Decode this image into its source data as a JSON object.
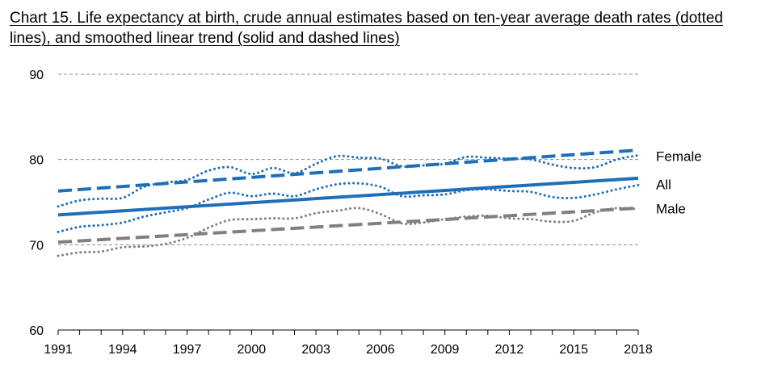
{
  "chart_data": {
    "type": "line",
    "title": "Chart 15. Life expectancy at birth, crude annual estimates based on ten-year average death rates (dotted lines), and smoothed linear trend (solid and dashed lines)",
    "xlabel": "",
    "ylabel": "",
    "ylim": [
      60,
      90
    ],
    "xlim": [
      1991,
      2018
    ],
    "y_ticks": [
      60,
      70,
      80,
      90
    ],
    "x_ticks": [
      1991,
      1994,
      1997,
      2000,
      2003,
      2006,
      2009,
      2012,
      2015,
      2018
    ],
    "grid": true,
    "legend": "direct labels at right end of lines",
    "x": [
      1991,
      1992,
      1993,
      1994,
      1995,
      1996,
      1997,
      1998,
      1999,
      2000,
      2001,
      2002,
      2003,
      2004,
      2005,
      2006,
      2007,
      2008,
      2009,
      2010,
      2011,
      2012,
      2013,
      2014,
      2015,
      2016,
      2017,
      2018
    ],
    "series": [
      {
        "name": "Female",
        "style": "dotted",
        "color": "#1e6fba",
        "values": [
          74.5,
          75.2,
          75.4,
          75.5,
          76.8,
          77.3,
          77.6,
          78.7,
          79.1,
          78.3,
          79.0,
          78.4,
          79.5,
          80.4,
          80.2,
          80.1,
          79.2,
          79.3,
          79.5,
          80.3,
          80.2,
          80.1,
          80.0,
          79.4,
          79.0,
          79.1,
          80.0,
          80.5
        ]
      },
      {
        "name": "",
        "style": "dashed",
        "color": "#1e6fba",
        "values": [
          76.3,
          76.4,
          76.6,
          76.8,
          77.0,
          77.2,
          77.3,
          77.5,
          77.7,
          77.9,
          78.1,
          78.2,
          78.4,
          78.6,
          78.8,
          79.0,
          79.1,
          79.3,
          79.5,
          79.7,
          79.9,
          80.0,
          80.2,
          80.4,
          80.6,
          80.8,
          80.9,
          81.1
        ]
      },
      {
        "name": "All",
        "style": "dotted",
        "color": "#1e6fba",
        "values": [
          71.5,
          72.1,
          72.3,
          72.6,
          73.3,
          73.8,
          74.3,
          75.3,
          76.1,
          75.7,
          76.0,
          75.7,
          76.5,
          77.1,
          77.2,
          76.8,
          75.7,
          75.8,
          75.9,
          76.4,
          76.5,
          76.3,
          76.2,
          75.6,
          75.5,
          75.9,
          76.5,
          77.0
        ]
      },
      {
        "name": "",
        "style": "solid",
        "color": "#1e6fba",
        "values": [
          73.5,
          73.6,
          73.8,
          74.0,
          74.1,
          74.3,
          74.4,
          74.6,
          74.8,
          74.9,
          75.1,
          75.2,
          75.4,
          75.6,
          75.7,
          75.9,
          76.0,
          76.2,
          76.4,
          76.5,
          76.7,
          76.8,
          77.0,
          77.2,
          77.3,
          77.5,
          77.6,
          77.8
        ]
      },
      {
        "name": "Male",
        "style": "dotted",
        "color": "#808080",
        "values": [
          68.7,
          69.1,
          69.2,
          69.7,
          69.8,
          70.1,
          70.8,
          72.0,
          72.9,
          73.0,
          73.1,
          73.1,
          73.7,
          74.0,
          74.3,
          73.6,
          72.5,
          72.6,
          73.0,
          73.3,
          73.4,
          73.1,
          73.0,
          72.7,
          72.8,
          73.8,
          74.3,
          74.2
        ]
      },
      {
        "name": "",
        "style": "dashed",
        "color": "#808080",
        "values": [
          70.3,
          70.4,
          70.6,
          70.7,
          70.9,
          71.0,
          71.2,
          71.3,
          71.5,
          71.6,
          71.8,
          71.9,
          72.1,
          72.2,
          72.4,
          72.5,
          72.7,
          72.8,
          73.0,
          73.1,
          73.3,
          73.4,
          73.6,
          73.7,
          73.9,
          74.0,
          74.2,
          74.3
        ]
      }
    ]
  }
}
